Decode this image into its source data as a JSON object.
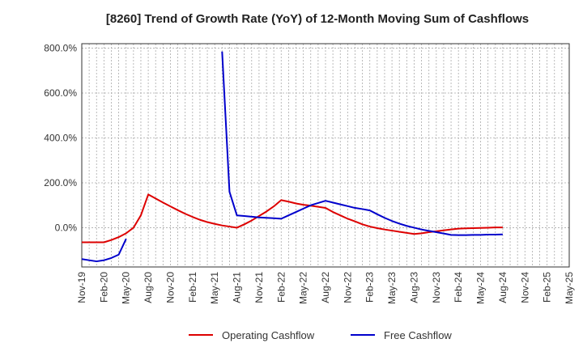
{
  "chart_data": {
    "type": "line",
    "title": "[8260]  Trend of Growth Rate (YoY) of 12-Month Moving Sum of Cashflows",
    "xlabel": "",
    "ylabel": "",
    "ylim": [
      -175,
      820
    ],
    "y_ticks": [
      0,
      200,
      400,
      600,
      800
    ],
    "y_tick_labels": [
      "0.0%",
      "200.0%",
      "400.0%",
      "600.0%",
      "800.0%"
    ],
    "x_categories": [
      "Nov-19",
      "Dec-19",
      "Jan-20",
      "Feb-20",
      "Mar-20",
      "Apr-20",
      "May-20",
      "Jun-20",
      "Jul-20",
      "Aug-20",
      "Sep-20",
      "Oct-20",
      "Nov-20",
      "Dec-20",
      "Jan-21",
      "Feb-21",
      "Mar-21",
      "Apr-21",
      "May-21",
      "Jun-21",
      "Jul-21",
      "Aug-21",
      "Sep-21",
      "Oct-21",
      "Nov-21",
      "Dec-21",
      "Jan-22",
      "Feb-22",
      "Mar-22",
      "Apr-22",
      "May-22",
      "Jun-22",
      "Jul-22",
      "Aug-22",
      "Sep-22",
      "Oct-22",
      "Nov-22",
      "Dec-22",
      "Jan-23",
      "Feb-23",
      "Mar-23",
      "Apr-23",
      "May-23",
      "Jun-23",
      "Jul-23",
      "Aug-23",
      "Sep-23",
      "Oct-23",
      "Nov-23",
      "Dec-23",
      "Jan-24",
      "Feb-24",
      "Mar-24",
      "Apr-24",
      "May-24",
      "Jun-24",
      "Jul-24",
      "Aug-24",
      "Sep-24",
      "Oct-24",
      "Nov-24",
      "Dec-24",
      "Jan-25",
      "Feb-25",
      "Mar-25",
      "Apr-25",
      "May-25"
    ],
    "x_tick_labels": [
      "Nov-19",
      "Feb-20",
      "May-20",
      "Aug-20",
      "Nov-20",
      "Feb-21",
      "May-21",
      "Aug-21",
      "Nov-21",
      "Feb-22",
      "May-22",
      "Aug-22",
      "Nov-22",
      "Feb-23",
      "May-23",
      "Aug-23",
      "Nov-23",
      "Feb-24",
      "May-24",
      "Aug-24",
      "Nov-24",
      "Feb-25",
      "May-25"
    ],
    "grid": true,
    "legend_position": "bottom-center",
    "series": [
      {
        "name": "Operating Cashflow",
        "color": "#dd0000",
        "values": [
          -65,
          -65,
          -65,
          -65,
          -55,
          -42,
          -25,
          0,
          55,
          148,
          130,
          112,
          95,
          78,
          62,
          48,
          35,
          25,
          17,
          10,
          5,
          0,
          15,
          32,
          52,
          72,
          95,
          123,
          116,
          108,
          102,
          98,
          93,
          88,
          70,
          55,
          40,
          28,
          15,
          5,
          -2,
          -8,
          -13,
          -18,
          -23,
          -28,
          -25,
          -20,
          -16,
          -12,
          -8,
          -4,
          -3,
          -2,
          -1,
          0,
          1,
          1,
          null,
          null,
          null,
          null,
          null,
          null,
          null,
          null,
          null
        ]
      },
      {
        "name": "Free Cashflow",
        "color": "#0000cc",
        "values": [
          -140,
          -145,
          -150,
          -145,
          -135,
          -120,
          -50,
          null,
          null,
          null,
          null,
          null,
          null,
          null,
          null,
          null,
          null,
          null,
          null,
          785,
          160,
          55,
          52,
          49,
          46,
          44,
          42,
          40,
          55,
          70,
          85,
          100,
          110,
          120,
          112,
          104,
          96,
          88,
          83,
          77,
          60,
          44,
          30,
          18,
          8,
          0,
          -8,
          -14,
          -20,
          -26,
          -32,
          -33,
          -33,
          -32,
          -32,
          -31,
          -31,
          -30,
          null,
          null,
          null,
          null,
          null,
          null,
          null,
          null,
          null
        ]
      }
    ]
  }
}
